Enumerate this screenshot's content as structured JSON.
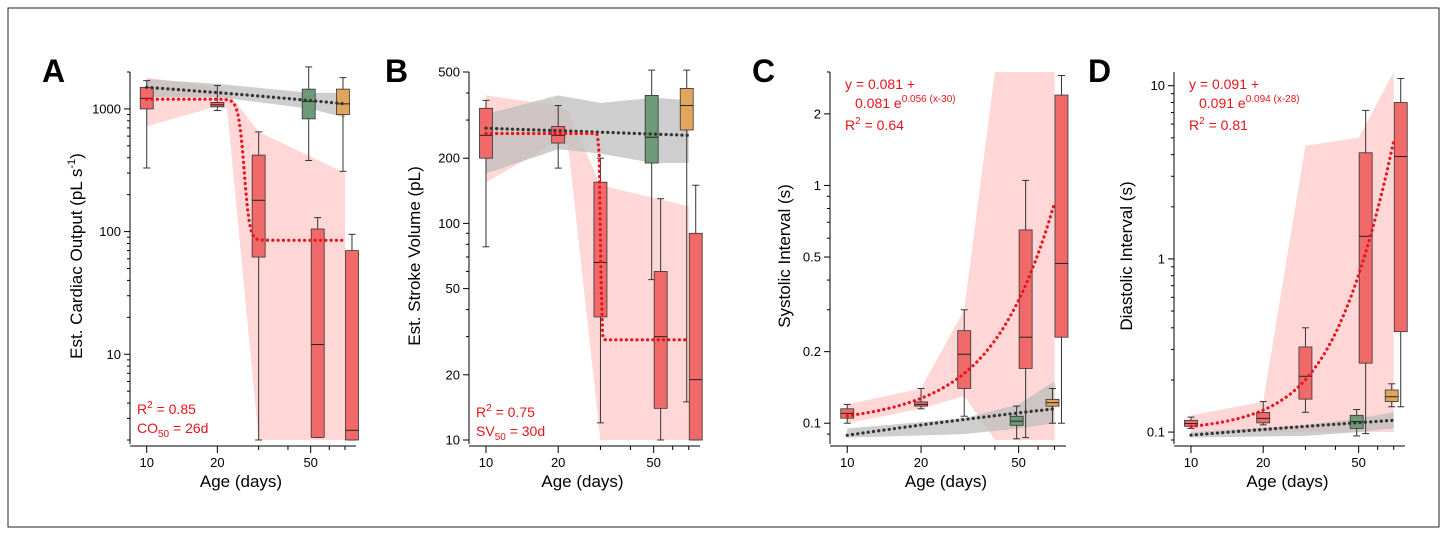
{
  "colors": {
    "fit_red": "#e8141c",
    "fit_black": "#333333",
    "red_band": "#ffc9c9",
    "gray_band": "#bdbdbd",
    "red_box": "#f06a6a",
    "green_box": "#6e9a78",
    "orange_box": "#e2a55e"
  },
  "x_axis": {
    "label": "Age  (days)",
    "tick_values": [
      10,
      20,
      50
    ],
    "tick_labels": [
      "10",
      "20",
      "50"
    ],
    "xlim": [
      9,
      78
    ]
  },
  "chart_data": [
    {
      "panel": "A",
      "type": "box",
      "scale": "log",
      "ylabel": "Est. Cardiac Output  (pL s",
      "ylabel_sup": "-1",
      "ylabel_end": ")",
      "ylim": [
        2,
        2000
      ],
      "yticks": [
        10,
        100,
        1000
      ],
      "ytick_labels": [
        "10",
        "100",
        "1000"
      ],
      "annotations": [
        {
          "text": "R",
          "sup": "2",
          "rest": " = 0.85"
        },
        {
          "text": "CO",
          "sub": "50",
          "rest": " = 26d"
        }
      ],
      "red_band": [
        [
          10,
          720,
          1800
        ],
        [
          20,
          1050,
          1500
        ],
        [
          22,
          1000,
          1400
        ],
        [
          30,
          2,
          650
        ],
        [
          70,
          2,
          300
        ]
      ],
      "gray_band": [
        [
          10,
          1250,
          1750
        ],
        [
          20,
          1250,
          1600
        ],
        [
          50,
          1000,
          1350
        ],
        [
          70,
          850,
          1350
        ]
      ],
      "red_fit": {
        "type": "sigmoid",
        "top": 1200,
        "bottom": 85,
        "x50": 26,
        "k": 1.4,
        "xmin": 10,
        "xmax": 70
      },
      "black_fit": {
        "type": "linear",
        "y0": 1500,
        "y1": 1100,
        "xmin": 10,
        "xmax": 70
      },
      "boxes": [
        {
          "x": 10,
          "min": 330,
          "q1": 1000,
          "median": 1220,
          "q3": 1500,
          "max": 1700,
          "color": "red"
        },
        {
          "x": 20,
          "min": 970,
          "q1": 1040,
          "median": 1080,
          "q3": 1130,
          "max": 1550,
          "color": "red"
        },
        {
          "x": 30,
          "min": 2,
          "q1": 62,
          "median": 180,
          "q3": 420,
          "max": 650,
          "color": "red"
        },
        {
          "x": 50,
          "min": 380,
          "q1": 830,
          "median": 1150,
          "q3": 1450,
          "max": 2200,
          "color": "green"
        },
        {
          "x": 50,
          "min": 2.1,
          "q1": 2.1,
          "median": 12,
          "q3": 105,
          "max": 130,
          "color": "red",
          "offset": 0.35
        },
        {
          "x": 70,
          "min": 310,
          "q1": 900,
          "median": 1100,
          "q3": 1450,
          "max": 1800,
          "color": "orange"
        },
        {
          "x": 70,
          "min": 2,
          "q1": 2,
          "median": 2.4,
          "q3": 70,
          "max": 95,
          "color": "red",
          "offset": 0.35
        }
      ]
    },
    {
      "panel": "B",
      "type": "box",
      "scale": "log",
      "ylabel": "Est. Stroke Volume  (pL)",
      "ylim": [
        10,
        500
      ],
      "yticks": [
        10,
        20,
        50,
        100,
        200,
        500
      ],
      "ytick_labels": [
        "10",
        "20",
        "50",
        "100",
        "200",
        "500"
      ],
      "annotations": [
        {
          "text": "R",
          "sup": "2",
          "rest": " = 0.75"
        },
        {
          "text": "SV",
          "sub": "50",
          "rest": " = 30d"
        }
      ],
      "red_band": [
        [
          10,
          155,
          390
        ],
        [
          20,
          240,
          350
        ],
        [
          22,
          230,
          330
        ],
        [
          30,
          10,
          150
        ],
        [
          70,
          10,
          120
        ]
      ],
      "gray_band": [
        [
          10,
          170,
          320
        ],
        [
          20,
          220,
          390
        ],
        [
          30,
          210,
          360
        ],
        [
          50,
          190,
          380
        ],
        [
          70,
          190,
          370
        ]
      ],
      "red_fit": {
        "type": "sigmoid",
        "top": 260,
        "bottom": 29,
        "x50": 30,
        "k": 6,
        "xmin": 10,
        "xmax": 70
      },
      "black_fit": {
        "type": "linear",
        "y0": 275,
        "y1": 255,
        "xmin": 10,
        "xmax": 70
      },
      "boxes": [
        {
          "x": 10,
          "min": 78,
          "q1": 200,
          "median": 255,
          "q3": 340,
          "max": 370,
          "color": "red"
        },
        {
          "x": 20,
          "min": 180,
          "q1": 235,
          "median": 255,
          "q3": 280,
          "max": 350,
          "color": "red"
        },
        {
          "x": 30,
          "min": 12,
          "q1": 37,
          "median": 66,
          "q3": 155,
          "max": 200,
          "color": "red"
        },
        {
          "x": 50,
          "min": 55,
          "q1": 190,
          "median": 250,
          "q3": 390,
          "max": 510,
          "color": "green"
        },
        {
          "x": 50,
          "min": 10,
          "q1": 14,
          "median": 30,
          "q3": 60,
          "max": 130,
          "color": "red",
          "offset": 0.35
        },
        {
          "x": 70,
          "min": 15,
          "q1": 270,
          "median": 350,
          "q3": 420,
          "max": 510,
          "color": "orange"
        },
        {
          "x": 70,
          "min": 10,
          "q1": 10,
          "median": 19,
          "q3": 90,
          "max": 150,
          "color": "red",
          "offset": 0.35
        }
      ]
    },
    {
      "panel": "C",
      "type": "box",
      "scale": "log",
      "ylabel": "Systolic Interval  (s)",
      "ylim": [
        0.085,
        3
      ],
      "yticks": [
        0.1,
        0.2,
        0.5,
        1,
        2
      ],
      "ytick_labels": [
        "0.1",
        "0.2",
        "0.5",
        "1",
        "2"
      ],
      "annotations": [
        {
          "text": "y = 0.081 +"
        },
        {
          "text": "0.081 e",
          "sup": "0.056 (x-30)"
        },
        {
          "text": "R",
          "sup": "2",
          "rest": " = 0.64"
        }
      ],
      "red_band": [
        [
          10,
          0.1,
          0.12
        ],
        [
          20,
          0.115,
          0.14
        ],
        [
          30,
          0.13,
          0.3
        ],
        [
          40,
          0.085,
          3
        ],
        [
          70,
          0.085,
          3
        ]
      ],
      "gray_band": [
        [
          10,
          0.087,
          0.095
        ],
        [
          30,
          0.09,
          0.105
        ],
        [
          50,
          0.095,
          0.12
        ],
        [
          70,
          0.1,
          0.15
        ]
      ],
      "red_fit": {
        "type": "exp",
        "a": 0.081,
        "b": 0.081,
        "k": 0.056,
        "x0": 30,
        "xmin": 10,
        "xmax": 70
      },
      "black_fit": {
        "type": "linear",
        "y0": 0.089,
        "y1": 0.115,
        "xmin": 10,
        "xmax": 70
      },
      "boxes": [
        {
          "x": 10,
          "min": 0.1,
          "q1": 0.105,
          "median": 0.11,
          "q3": 0.115,
          "max": 0.12,
          "color": "red"
        },
        {
          "x": 20,
          "min": 0.115,
          "q1": 0.118,
          "median": 0.12,
          "q3": 0.123,
          "max": 0.14,
          "color": "red"
        },
        {
          "x": 30,
          "min": 0.107,
          "q1": 0.14,
          "median": 0.195,
          "q3": 0.245,
          "max": 0.3,
          "color": "red"
        },
        {
          "x": 50,
          "min": 0.086,
          "q1": 0.098,
          "median": 0.102,
          "q3": 0.107,
          "max": 0.118,
          "color": "green"
        },
        {
          "x": 50,
          "min": 0.087,
          "q1": 0.17,
          "median": 0.23,
          "q3": 0.65,
          "max": 1.05,
          "color": "red",
          "offset": 0.35
        },
        {
          "x": 70,
          "min": 0.1,
          "q1": 0.118,
          "median": 0.122,
          "q3": 0.126,
          "max": 0.14,
          "color": "orange"
        },
        {
          "x": 70,
          "min": 0.1,
          "q1": 0.23,
          "median": 0.47,
          "q3": 2.4,
          "max": 2.9,
          "color": "red",
          "offset": 0.35
        }
      ]
    },
    {
      "panel": "D",
      "type": "box",
      "scale": "log",
      "ylabel": "Diastolic Interval  (s)",
      "ylim": [
        0.09,
        12
      ],
      "yticks": [
        0.1,
        1,
        10
      ],
      "ytick_labels": [
        "0.1",
        "1",
        "10"
      ],
      "annotations": [
        {
          "text": "y = 0.091 +"
        },
        {
          "text": "0.091 e",
          "sup": "0.094 (x-28)"
        },
        {
          "text": "R",
          "sup": "2",
          "rest": " = 0.81"
        }
      ],
      "red_band": [
        [
          10,
          0.1,
          0.125
        ],
        [
          20,
          0.1,
          0.15
        ],
        [
          30,
          0.1,
          4.5
        ],
        [
          50,
          0.1,
          5
        ],
        [
          70,
          0.1,
          12
        ]
      ],
      "gray_band": [
        [
          10,
          0.093,
          0.1
        ],
        [
          30,
          0.095,
          0.11
        ],
        [
          50,
          0.1,
          0.12
        ],
        [
          70,
          0.105,
          0.13
        ]
      ],
      "red_fit": {
        "type": "exp",
        "a": 0.091,
        "b": 0.091,
        "k": 0.094,
        "x0": 28,
        "xmin": 10,
        "xmax": 70
      },
      "black_fit": {
        "type": "linear",
        "y0": 0.096,
        "y1": 0.117,
        "xmin": 10,
        "xmax": 70
      },
      "boxes": [
        {
          "x": 10,
          "min": 0.105,
          "q1": 0.108,
          "median": 0.112,
          "q3": 0.117,
          "max": 0.122,
          "color": "red"
        },
        {
          "x": 20,
          "min": 0.11,
          "q1": 0.113,
          "median": 0.12,
          "q3": 0.13,
          "max": 0.15,
          "color": "red"
        },
        {
          "x": 30,
          "min": 0.13,
          "q1": 0.155,
          "median": 0.21,
          "q3": 0.31,
          "max": 0.4,
          "color": "red"
        },
        {
          "x": 50,
          "min": 0.095,
          "q1": 0.105,
          "median": 0.115,
          "q3": 0.125,
          "max": 0.135,
          "color": "green"
        },
        {
          "x": 50,
          "min": 0.098,
          "q1": 0.25,
          "median": 1.35,
          "q3": 4.1,
          "max": 7.2,
          "color": "red",
          "offset": 0.35
        },
        {
          "x": 70,
          "min": 0.14,
          "q1": 0.15,
          "median": 0.16,
          "q3": 0.175,
          "max": 0.19,
          "color": "orange"
        },
        {
          "x": 70,
          "min": 0.14,
          "q1": 0.38,
          "median": 3.9,
          "q3": 8,
          "max": 11,
          "color": "red",
          "offset": 0.35
        }
      ]
    }
  ]
}
